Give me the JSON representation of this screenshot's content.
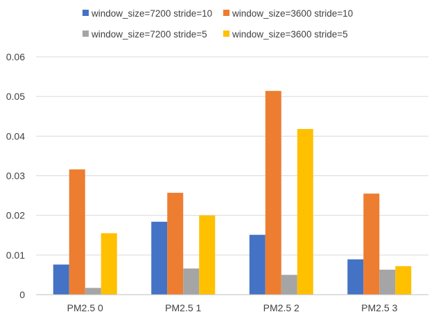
{
  "chart_data": {
    "type": "bar",
    "title": "",
    "xlabel": "",
    "ylabel": "",
    "categories": [
      "PM2.5 0",
      "PM2.5 1",
      "PM2.5 2",
      "PM2.5 3"
    ],
    "series": [
      {
        "name": "window_size=7200 stride=10",
        "color": "#4472C4",
        "values": [
          0.0076,
          0.0184,
          0.0151,
          0.0089
        ]
      },
      {
        "name": "window_size=3600 stride=10",
        "color": "#ED7D31",
        "values": [
          0.0316,
          0.0257,
          0.0514,
          0.0255
        ]
      },
      {
        "name": "window_size=7200 stride=5",
        "color": "#A5A5A5",
        "values": [
          0.0017,
          0.0066,
          0.005,
          0.0063
        ]
      },
      {
        "name": "window_size=3600 stride=5",
        "color": "#FFC000",
        "values": [
          0.0155,
          0.02,
          0.0418,
          0.0072
        ]
      }
    ],
    "ylim": [
      0,
      0.06
    ],
    "yticks": [
      "0",
      "0.01",
      "0.02",
      "0.03",
      "0.04",
      "0.05",
      "0.06"
    ],
    "grid": true,
    "legend_position": "top"
  }
}
